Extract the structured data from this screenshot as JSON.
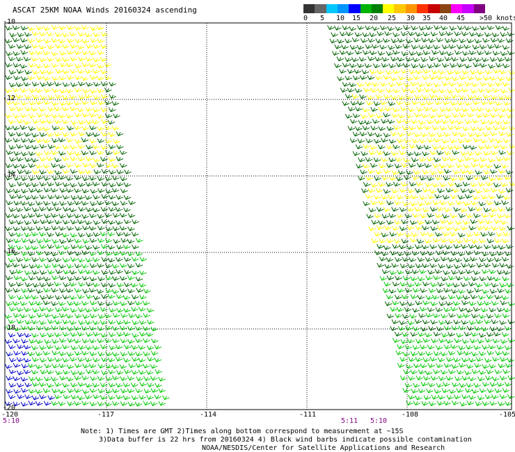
{
  "title": "ASCAT 25KM NOAA Winds 20160324 ascending",
  "legend": {
    "colors": [
      "#333333",
      "#666666",
      "#00c8ff",
      "#0096ff",
      "#0000ff",
      "#00b400",
      "#008000",
      "#ffff00",
      "#ffc800",
      "#ff9600",
      "#ff3200",
      "#c80000",
      "#8b4513",
      "#ff00ff",
      "#c800ff",
      "#800080"
    ],
    "labels": [
      "0",
      "5",
      "10",
      "15",
      "20",
      "25",
      "30",
      "35",
      "40",
      "45",
      ">50 knots"
    ]
  },
  "axes": {
    "lat_labels": [
      "-10",
      "-12",
      "-14",
      "-16",
      "-18",
      "-20"
    ],
    "lon_labels": [
      "-120",
      "-117",
      "-114",
      "-111",
      "-108",
      "-105"
    ]
  },
  "times": [
    "5:10",
    "5:11",
    "5:10"
  ],
  "notes": [
    "Note: 1) Times are GMT 2)Times along bottom correspond to measurement at ~15S",
    "3)Data buffer is 22 hrs from 20160324 4) Black wind barbs indicate possible contamination",
    "NOAA/NESDIS/Center for Satellite Applications and Research"
  ],
  "barb_colors": {
    "light_green": "#00c800",
    "dark_green": "#006400",
    "yellow": "#ffff00",
    "blue": "#0000c8"
  }
}
